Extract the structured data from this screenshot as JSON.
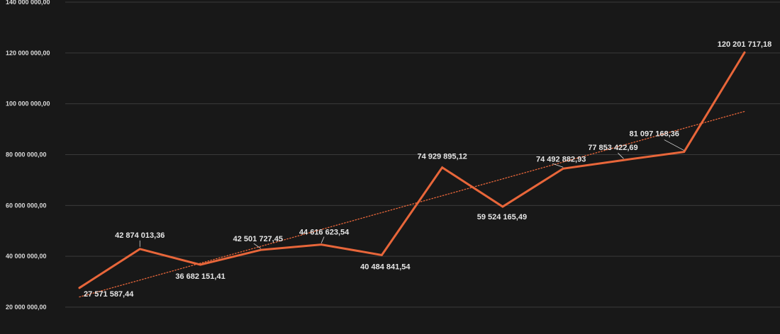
{
  "chart_data": {
    "type": "line",
    "title": "",
    "xlabel": "",
    "ylabel": "",
    "ylim": [
      20000000,
      140000000
    ],
    "grid": true,
    "legend": "none",
    "y_ticks": [
      20000000,
      40000000,
      60000000,
      80000000,
      100000000,
      120000000,
      140000000
    ],
    "y_tick_labels": [
      "20 000 000,00",
      "40 000 000,00",
      "60 000 000,00",
      "80 000 000,00",
      "100 000 000,00",
      "120 000 000,00",
      "140 000 000,00"
    ],
    "series": [
      {
        "values": [
          27571587.44,
          42874013.36,
          36682151.41,
          42501727.45,
          44616623.54,
          40484841.54,
          74929895.12,
          59524165.49,
          74492882.93,
          77853422.69,
          81097168.36,
          120201717.18
        ],
        "labels": [
          "27 571 587,44",
          "42 874 013,36",
          "36 682 151,41",
          "42 501 727,45",
          "44 616 623,54",
          "40 484 841,54",
          "74 929 895,12",
          "59 524 165,49",
          "74 492 882,93",
          "77 853 422,69",
          "81 097 168,36",
          "120 201 717,18"
        ],
        "color": "#e8663a"
      }
    ],
    "trendline": {
      "type": "linear",
      "style": "dotted",
      "color": "#e8663a",
      "start_value": 24000000,
      "end_value": 97000000
    }
  }
}
